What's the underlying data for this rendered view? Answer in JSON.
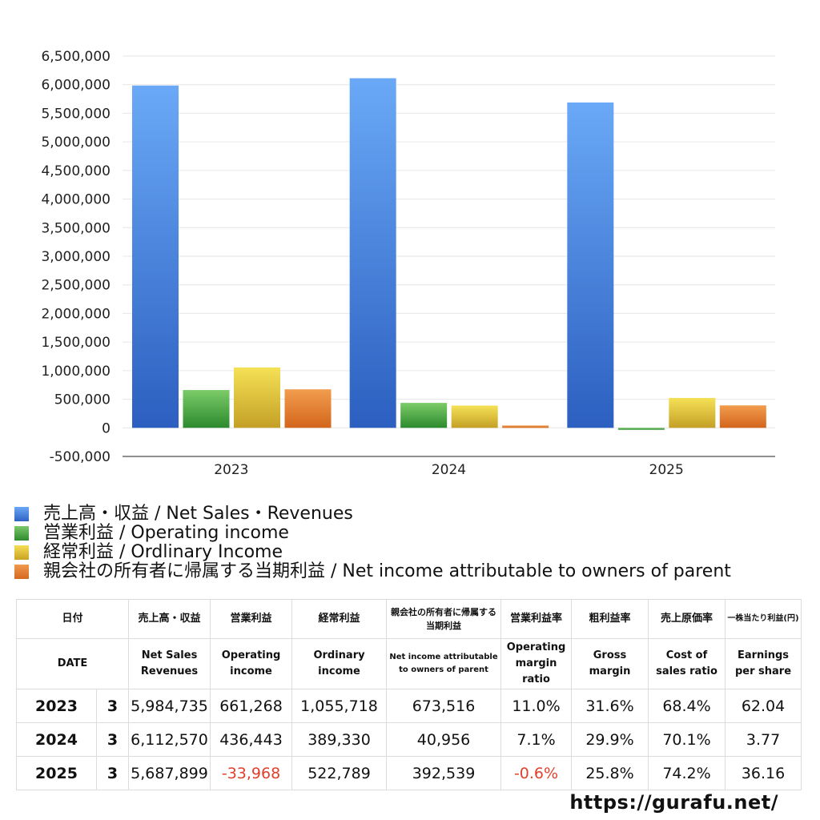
{
  "chart_data": {
    "type": "bar",
    "categories": [
      "2023",
      "2024",
      "2025"
    ],
    "ylim": [
      -500000,
      6500000
    ],
    "yticks": [
      6500000,
      6000000,
      5500000,
      5000000,
      4500000,
      4000000,
      3500000,
      3000000,
      2500000,
      2000000,
      1500000,
      1000000,
      500000,
      0,
      -500000
    ],
    "ytick_labels": [
      "6,500,000",
      "6,000,000",
      "5,500,000",
      "5,000,000",
      "4,500,000",
      "4,000,000",
      "3,500,000",
      "3,000,000",
      "2,500,000",
      "2,000,000",
      "1,500,000",
      "1,000,000",
      "500,000",
      "0",
      "-500,000"
    ],
    "grid": true,
    "legend_position": "bottom",
    "series": [
      {
        "name": "売上高・収益 / Net Sales・Revenues",
        "color": "#4a86e0",
        "values": [
          5984735,
          6112570,
          5687899
        ]
      },
      {
        "name": "営業利益 / Operating income",
        "color": "#47a33c",
        "values": [
          661268,
          436443,
          -33968
        ]
      },
      {
        "name": "経常利益 / Ordlinary Income",
        "color": "#e3c231",
        "values": [
          1055718,
          389330,
          522789
        ]
      },
      {
        "name": "親会社の所有者に帰属する当期利益 / Net income attributable to owners of parent",
        "color": "#e07a2c",
        "values": [
          673516,
          40956,
          392539
        ]
      }
    ]
  },
  "table": {
    "headers_ja": [
      "日付",
      "売上高・収益",
      "営業利益",
      "経常利益",
      "親会社の所有者に帰属する当期利益",
      "営業利益率",
      "粗利益率",
      "売上原価率",
      "一株当たり利益(円)"
    ],
    "headers_en": [
      "DATE",
      "Net Sales Revenues",
      "Operating income",
      "Ordinary income",
      "Net income attributable to owners of parent",
      "Operating margin ratio",
      "Gross margin",
      "Cost of sales ratio",
      "Earnings per share"
    ],
    "rows": [
      {
        "year": "2023",
        "month": "3",
        "sales": "5,984,735",
        "op": "661,268",
        "ord": "1,055,718",
        "net": "673,516",
        "opm": "11.0%",
        "gm": "31.6%",
        "cos": "68.4%",
        "eps": "62.04"
      },
      {
        "year": "2024",
        "month": "3",
        "sales": "6,112,570",
        "op": "436,443",
        "ord": "389,330",
        "net": "40,956",
        "opm": "7.1%",
        "gm": "29.9%",
        "cos": "70.1%",
        "eps": "3.77"
      },
      {
        "year": "2025",
        "month": "3",
        "sales": "5,687,899",
        "op": "-33,968",
        "ord": "522,789",
        "net": "392,539",
        "opm": "-0.6%",
        "gm": "25.8%",
        "cos": "74.2%",
        "eps": "36.16"
      }
    ]
  },
  "site": "https://gurafu.net/"
}
